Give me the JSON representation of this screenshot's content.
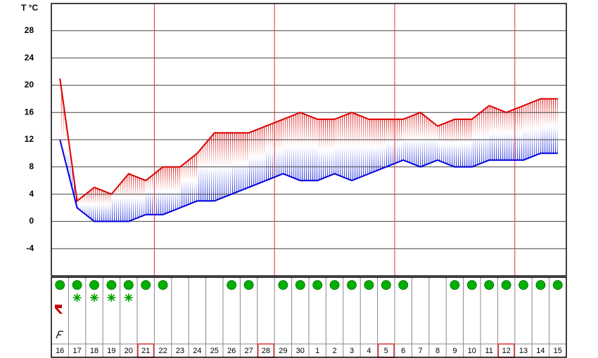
{
  "chart_data": {
    "type": "line",
    "y_label": "T °C",
    "categories": [
      "16",
      "17",
      "18",
      "19",
      "20",
      "21",
      "22",
      "23",
      "24",
      "25",
      "26",
      "27",
      "28",
      "29",
      "30",
      "1",
      "2",
      "3",
      "4",
      "5",
      "6",
      "7",
      "8",
      "9",
      "10",
      "11",
      "12",
      "13",
      "14",
      "15"
    ],
    "series": [
      {
        "color": "#dd0000",
        "values": [
          21,
          3,
          5,
          4,
          7,
          6,
          8,
          8,
          10,
          13,
          13,
          13,
          14,
          15,
          16,
          15,
          15,
          16,
          15,
          15,
          15,
          16,
          14,
          15,
          15,
          17,
          16,
          17,
          18,
          18
        ]
      },
      {
        "color": "#0000dd",
        "values": [
          12,
          2,
          0,
          0,
          0,
          1,
          1,
          2,
          3,
          3,
          4,
          5,
          6,
          7,
          6,
          6,
          7,
          6,
          7,
          8,
          9,
          8,
          9,
          8,
          8,
          9,
          9,
          9,
          10,
          10
        ]
      }
    ],
    "ylim": [
      -8,
      32
    ],
    "yticks": [
      -4,
      0,
      4,
      8,
      12,
      16,
      20,
      24,
      28
    ],
    "grid": true,
    "boxed": [
      false,
      false,
      false,
      false,
      false,
      true,
      false,
      false,
      false,
      false,
      false,
      false,
      true,
      false,
      false,
      false,
      false,
      false,
      false,
      true,
      false,
      false,
      false,
      false,
      false,
      false,
      true,
      false,
      false,
      false
    ],
    "circle": [
      true,
      true,
      true,
      true,
      true,
      true,
      true,
      false,
      false,
      false,
      true,
      true,
      false,
      true,
      true,
      true,
      true,
      true,
      true,
      true,
      true,
      false,
      false,
      true,
      true,
      true,
      true,
      true,
      true,
      true
    ],
    "star": [
      false,
      true,
      true,
      true,
      true,
      false,
      false,
      false,
      false,
      false,
      false,
      false,
      false,
      false,
      false,
      false,
      false,
      false,
      false,
      false,
      false,
      false,
      false,
      false,
      false,
      false,
      false,
      false,
      false,
      false
    ]
  }
}
